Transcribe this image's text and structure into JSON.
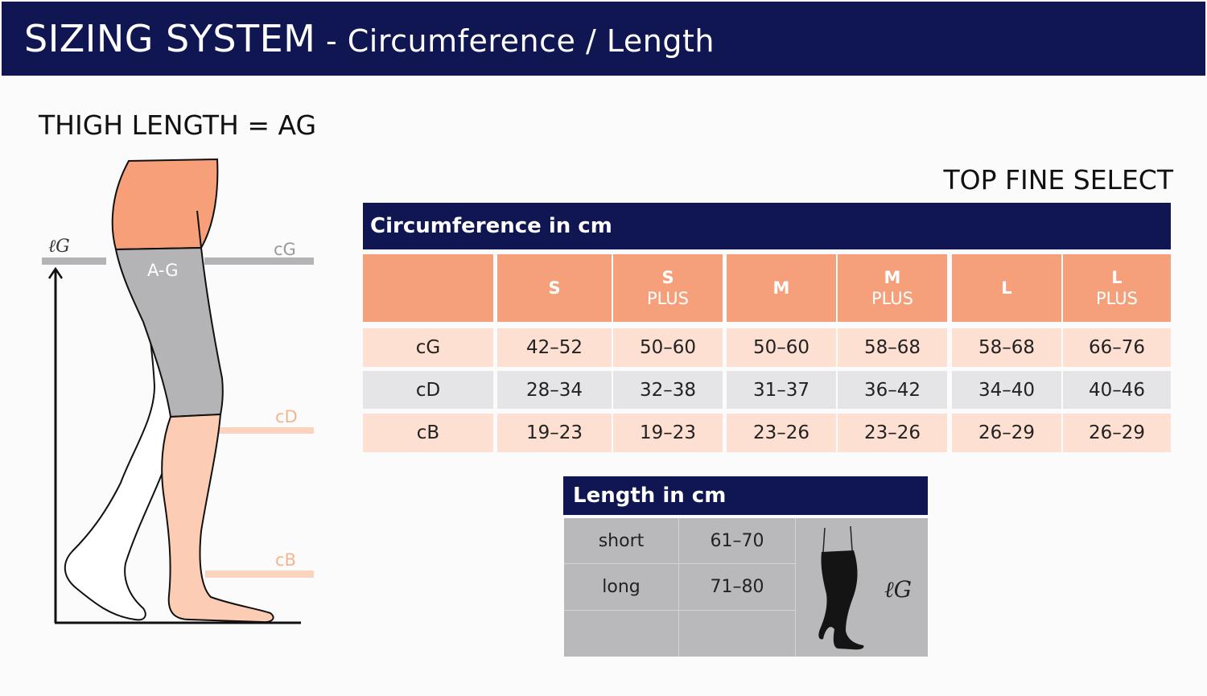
{
  "header": {
    "title_main": "SIZING SYSTEM",
    "title_sub": " - Circumference / Length"
  },
  "thigh_title": "THIGH LENGTH = AG",
  "product": "TOP FINE SELECT",
  "diagram": {
    "lG": "ℓG",
    "cG": "cG",
    "AG": "A-G",
    "cD": "cD",
    "cB": "cB"
  },
  "circumference": {
    "title": "Circumference in cm",
    "columns": [
      {
        "size": "S",
        "plus": ""
      },
      {
        "size": "S",
        "plus": "PLUS"
      },
      {
        "size": "M",
        "plus": ""
      },
      {
        "size": "M",
        "plus": "PLUS"
      },
      {
        "size": "L",
        "plus": ""
      },
      {
        "size": "L",
        "plus": "PLUS"
      }
    ],
    "rows": [
      {
        "label": "cG",
        "values": [
          "42–52",
          "50–60",
          "50–60",
          "58–68",
          "58–68",
          "66–76"
        ]
      },
      {
        "label": "cD",
        "values": [
          "28–34",
          "32–38",
          "31–37",
          "36–42",
          "34–40",
          "40–46"
        ]
      },
      {
        "label": "cB",
        "values": [
          "19–23",
          "19–23",
          "23–26",
          "23–26",
          "26–29",
          "26–29"
        ]
      }
    ]
  },
  "length": {
    "title": "Length in cm",
    "rows": [
      {
        "label": "short",
        "value": "61–70"
      },
      {
        "label": "long",
        "value": "71–80"
      }
    ],
    "image_label": "ℓG"
  },
  "colors": {
    "navy": "#0f1651",
    "salmon": "#f5a07a",
    "pink": "#fde0d2",
    "gray": "#e5e5e7",
    "leg_gray": "#b4b4b6"
  }
}
